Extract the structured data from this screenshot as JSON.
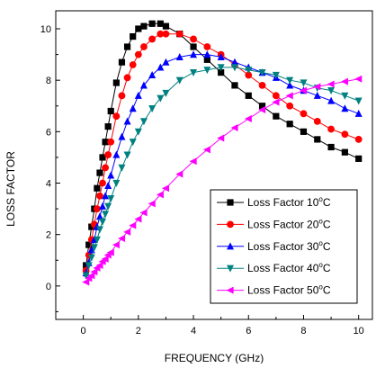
{
  "chart_data": {
    "type": "line",
    "xlabel": "FREQUENCY (GHz)",
    "ylabel": "LOSS FACTOR",
    "xlim": [
      -1,
      10.5
    ],
    "ylim": [
      -1.3,
      10.7
    ],
    "xticks": [
      0,
      2,
      4,
      6,
      8,
      10
    ],
    "yticks": [
      0,
      2,
      4,
      6,
      8,
      10
    ],
    "grid": false,
    "legend_position": "bottom-right",
    "series": [
      {
        "name": "Loss Factor 10",
        "unit_sup": "o",
        "unit": "C",
        "color": "#000000",
        "marker": "square",
        "x": [
          0.1,
          0.2,
          0.3,
          0.4,
          0.5,
          0.6,
          0.7,
          0.8,
          0.9,
          1.0,
          1.2,
          1.4,
          1.6,
          1.8,
          2.0,
          2.2,
          2.5,
          2.8,
          3.0,
          3.5,
          4.0,
          4.5,
          5.0,
          5.5,
          6.0,
          6.5,
          7.0,
          7.5,
          8.0,
          8.5,
          9.0,
          9.5,
          10.0
        ],
        "y": [
          0.8,
          1.6,
          2.3,
          3.0,
          3.8,
          4.4,
          5.0,
          5.6,
          6.2,
          6.8,
          7.9,
          8.7,
          9.3,
          9.7,
          10.0,
          10.1,
          10.2,
          10.2,
          10.1,
          9.8,
          9.3,
          8.8,
          8.3,
          7.8,
          7.4,
          7.0,
          6.6,
          6.3,
          6.0,
          5.7,
          5.4,
          5.2,
          4.95
        ]
      },
      {
        "name": "Loss Factor 20",
        "unit_sup": "o",
        "unit": "C",
        "color": "#ff0000",
        "marker": "circle",
        "x": [
          0.1,
          0.2,
          0.3,
          0.4,
          0.5,
          0.6,
          0.7,
          0.8,
          0.9,
          1.0,
          1.2,
          1.4,
          1.6,
          1.8,
          2.0,
          2.2,
          2.5,
          2.8,
          3.0,
          3.5,
          4.0,
          4.5,
          5.0,
          5.5,
          6.0,
          6.5,
          7.0,
          7.5,
          8.0,
          8.5,
          9.0,
          9.5,
          10.0
        ],
        "y": [
          0.6,
          1.2,
          1.8,
          2.4,
          3.0,
          3.5,
          4.0,
          4.6,
          5.1,
          5.6,
          6.6,
          7.4,
          8.1,
          8.6,
          9.0,
          9.3,
          9.6,
          9.8,
          9.8,
          9.8,
          9.6,
          9.3,
          9.0,
          8.6,
          8.2,
          7.8,
          7.4,
          7.0,
          6.7,
          6.4,
          6.1,
          5.9,
          5.7
        ]
      },
      {
        "name": "Loss Factor 30",
        "unit_sup": "o",
        "unit": "C",
        "color": "#0000ff",
        "marker": "triangle-up",
        "x": [
          0.1,
          0.2,
          0.3,
          0.4,
          0.5,
          0.6,
          0.7,
          0.8,
          0.9,
          1.0,
          1.2,
          1.4,
          1.6,
          1.8,
          2.0,
          2.2,
          2.5,
          2.8,
          3.0,
          3.5,
          4.0,
          4.5,
          5.0,
          5.5,
          6.0,
          6.5,
          7.0,
          7.5,
          8.0,
          8.5,
          9.0,
          9.5,
          10.0
        ],
        "y": [
          0.5,
          0.9,
          1.4,
          1.8,
          2.3,
          2.7,
          3.1,
          3.5,
          3.9,
          4.3,
          5.1,
          5.8,
          6.4,
          6.9,
          7.4,
          7.8,
          8.2,
          8.5,
          8.7,
          8.9,
          9.0,
          9.0,
          8.9,
          8.7,
          8.5,
          8.3,
          8.1,
          7.8,
          7.6,
          7.4,
          7.2,
          6.9,
          6.7
        ]
      },
      {
        "name": "Loss Factor 40",
        "unit_sup": "o",
        "unit": "C",
        "color": "#008080",
        "marker": "triangle-down",
        "x": [
          0.1,
          0.2,
          0.3,
          0.4,
          0.5,
          0.6,
          0.7,
          0.8,
          0.9,
          1.0,
          1.2,
          1.4,
          1.6,
          1.8,
          2.0,
          2.2,
          2.5,
          2.8,
          3.0,
          3.5,
          4.0,
          4.5,
          5.0,
          5.5,
          6.0,
          6.5,
          7.0,
          7.5,
          8.0,
          8.5,
          9.0,
          9.5,
          10.0
        ],
        "y": [
          0.4,
          0.8,
          1.1,
          1.5,
          1.8,
          2.2,
          2.5,
          2.8,
          3.1,
          3.4,
          4.0,
          4.6,
          5.1,
          5.6,
          6.0,
          6.4,
          6.9,
          7.3,
          7.5,
          8.0,
          8.3,
          8.4,
          8.5,
          8.5,
          8.4,
          8.3,
          8.2,
          8.0,
          7.9,
          7.7,
          7.6,
          7.4,
          7.2
        ]
      },
      {
        "name": "Loss Factor 50",
        "unit_sup": "o",
        "unit": "C",
        "color": "#ff00ff",
        "marker": "triangle-left",
        "x": [
          0.1,
          0.2,
          0.3,
          0.4,
          0.5,
          0.6,
          0.7,
          0.8,
          0.9,
          1.0,
          1.2,
          1.4,
          1.6,
          1.8,
          2.0,
          2.2,
          2.5,
          2.8,
          3.0,
          3.5,
          4.0,
          4.5,
          5.0,
          5.5,
          6.0,
          6.5,
          7.0,
          7.5,
          8.0,
          8.5,
          9.0,
          9.5,
          10.0
        ],
        "y": [
          0.15,
          0.3,
          0.4,
          0.55,
          0.7,
          0.8,
          0.95,
          1.05,
          1.2,
          1.3,
          1.6,
          1.85,
          2.1,
          2.35,
          2.6,
          2.85,
          3.2,
          3.55,
          3.8,
          4.35,
          4.85,
          5.3,
          5.75,
          6.15,
          6.5,
          6.85,
          7.15,
          7.4,
          7.6,
          7.75,
          7.85,
          7.95,
          8.05
        ]
      }
    ]
  }
}
